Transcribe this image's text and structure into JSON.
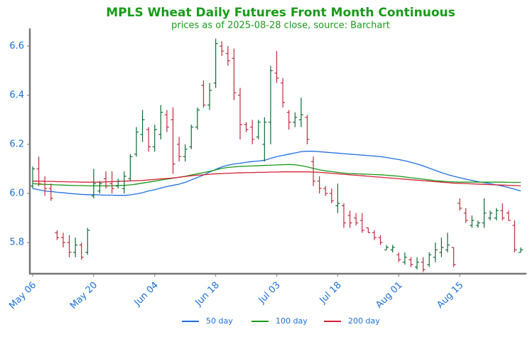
{
  "chart_data": {
    "type": "ohlc",
    "title": "MPLS Wheat Daily Futures Front Month Continuous",
    "subtitle": "prices as of 2025-08-28 close, source: Barchart",
    "title_color": "#1a9a1a",
    "categories": [
      "May 06",
      null,
      null,
      null,
      null,
      null,
      null,
      null,
      null,
      null,
      "May 20",
      null,
      null,
      null,
      null,
      null,
      null,
      null,
      null,
      null,
      "Jun 04",
      null,
      null,
      null,
      null,
      null,
      null,
      null,
      null,
      null,
      "Jun 18",
      null,
      null,
      null,
      null,
      null,
      null,
      null,
      null,
      null,
      "Jul 03",
      null,
      null,
      null,
      null,
      null,
      null,
      null,
      null,
      null,
      "Jul 18",
      null,
      null,
      null,
      null,
      null,
      null,
      null,
      null,
      null,
      "Aug 01",
      null,
      null,
      null,
      null,
      null,
      null,
      null,
      null,
      null,
      "Aug 15",
      null,
      null,
      null,
      null,
      null,
      null,
      null,
      null,
      null,
      null
    ],
    "ohlc": {
      "up_color": "#0b6b35",
      "down_color": "#c4283a",
      "open": [
        6.03,
        6.1,
        6.05,
        6.02,
        5.84,
        5.82,
        5.8,
        5.76,
        5.79,
        5.76,
        5.99,
        6.01,
        6.06,
        6.04,
        6.03,
        6.02,
        6.06,
        6.16,
        6.24,
        6.26,
        6.19,
        6.24,
        6.32,
        6.3,
        6.2,
        6.15,
        6.19,
        6.27,
        6.44,
        6.36,
        6.45,
        6.6,
        6.57,
        6.55,
        6.4,
        6.28,
        6.27,
        6.23,
        6.2,
        6.29,
        6.49,
        6.45,
        6.33,
        6.29,
        6.3,
        6.31,
        6.13,
        6.05,
        6.02,
        6.0,
        5.95,
        5.95,
        5.91,
        5.9,
        5.89,
        5.86,
        5.84,
        5.82,
        5.77,
        5.77,
        5.75,
        5.72,
        5.73,
        5.7,
        5.72,
        5.71,
        5.74,
        5.76,
        5.77,
        5.78,
        5.96,
        5.92,
        5.87,
        5.87,
        5.88,
        5.9,
        5.9,
        5.93,
        5.92,
        5.87,
        5.76
      ],
      "high": [
        6.11,
        6.15,
        6.07,
        6.04,
        5.85,
        5.84,
        5.83,
        5.82,
        5.8,
        5.86,
        6.1,
        6.05,
        6.09,
        6.09,
        6.06,
        6.09,
        6.16,
        6.27,
        6.34,
        6.27,
        6.28,
        6.36,
        6.34,
        6.35,
        6.23,
        6.2,
        6.28,
        6.35,
        6.46,
        6.45,
        6.63,
        6.62,
        6.6,
        6.59,
        6.43,
        6.29,
        6.3,
        6.3,
        6.31,
        6.52,
        6.58,
        6.47,
        6.34,
        6.33,
        6.39,
        6.32,
        6.15,
        6.07,
        6.03,
        6.02,
        6.04,
        5.96,
        5.93,
        5.92,
        5.92,
        5.86,
        5.85,
        5.83,
        5.79,
        5.79,
        5.76,
        5.76,
        5.74,
        5.74,
        5.74,
        5.76,
        5.8,
        5.82,
        5.84,
        5.78,
        5.98,
        5.94,
        5.91,
        5.89,
        5.98,
        5.93,
        5.94,
        5.96,
        5.93,
        5.89,
        5.78
      ],
      "low": [
        6.02,
        6.03,
        5.99,
        5.97,
        5.81,
        5.78,
        5.74,
        5.74,
        5.73,
        5.75,
        5.98,
        6.0,
        6.02,
        6.0,
        6.02,
        6.0,
        6.05,
        6.15,
        6.21,
        6.17,
        6.17,
        6.22,
        6.25,
        6.08,
        6.13,
        6.13,
        6.18,
        6.26,
        6.35,
        6.34,
        6.43,
        6.56,
        6.52,
        6.38,
        6.22,
        6.25,
        6.2,
        6.22,
        6.13,
        6.2,
        6.45,
        6.35,
        6.26,
        6.27,
        6.27,
        6.2,
        6.03,
        6.0,
        5.99,
        5.96,
        5.92,
        5.86,
        5.86,
        5.87,
        5.84,
        5.84,
        5.81,
        5.79,
        5.77,
        5.76,
        5.72,
        5.71,
        5.7,
        5.69,
        5.68,
        5.7,
        5.72,
        5.74,
        5.76,
        5.7,
        5.93,
        5.88,
        5.86,
        5.86,
        5.86,
        5.89,
        5.89,
        5.89,
        5.89,
        5.76,
        5.76
      ],
      "close": [
        6.1,
        6.04,
        6.02,
        5.98,
        5.82,
        5.8,
        5.76,
        5.79,
        5.74,
        5.85,
        6.04,
        6.04,
        6.03,
        6.02,
        6.05,
        6.07,
        6.15,
        6.25,
        6.3,
        6.19,
        6.26,
        6.33,
        6.27,
        6.12,
        6.15,
        6.18,
        6.27,
        6.34,
        6.36,
        6.42,
        6.61,
        6.58,
        6.54,
        6.41,
        6.28,
        6.26,
        6.22,
        6.29,
        6.29,
        6.5,
        6.47,
        6.37,
        6.29,
        6.31,
        6.32,
        6.22,
        6.05,
        6.02,
        6.0,
        5.97,
        5.96,
        5.88,
        5.88,
        5.88,
        5.85,
        5.84,
        5.82,
        5.8,
        5.78,
        5.78,
        5.73,
        5.74,
        5.71,
        5.72,
        5.69,
        5.75,
        5.77,
        5.78,
        5.79,
        5.71,
        5.94,
        5.89,
        5.89,
        5.88,
        5.92,
        5.92,
        5.93,
        5.9,
        5.89,
        5.77,
        5.77
      ]
    },
    "series": [
      {
        "name": "50 day",
        "color": "#1f6fe0",
        "values": [
          6.02,
          6.015,
          6.01,
          6.008,
          6.005,
          6.003,
          6.0,
          5.998,
          5.996,
          5.995,
          5.995,
          5.994,
          5.993,
          5.993,
          5.992,
          5.992,
          5.994,
          5.998,
          6.003,
          6.01,
          6.015,
          6.022,
          6.028,
          6.033,
          6.038,
          6.045,
          6.055,
          6.065,
          6.075,
          6.087,
          6.098,
          6.108,
          6.115,
          6.12,
          6.123,
          6.127,
          6.13,
          6.132,
          6.135,
          6.143,
          6.15,
          6.155,
          6.16,
          6.165,
          6.17,
          6.172,
          6.172,
          6.17,
          6.168,
          6.166,
          6.164,
          6.162,
          6.16,
          6.158,
          6.156,
          6.154,
          6.152,
          6.15,
          6.146,
          6.142,
          6.138,
          6.133,
          6.127,
          6.12,
          6.112,
          6.103,
          6.094,
          6.085,
          6.077,
          6.07,
          6.064,
          6.058,
          6.053,
          6.048,
          6.044,
          6.04,
          6.035,
          6.03,
          6.024,
          6.017,
          6.01
        ]
      },
      {
        "name": "100 day",
        "color": "#1a9a1a",
        "values": [
          6.04,
          6.038,
          6.037,
          6.036,
          6.035,
          6.034,
          6.033,
          6.032,
          6.032,
          6.031,
          6.031,
          6.031,
          6.031,
          6.031,
          6.032,
          6.033,
          6.035,
          6.038,
          6.042,
          6.046,
          6.05,
          6.054,
          6.058,
          6.062,
          6.066,
          6.07,
          6.075,
          6.08,
          6.085,
          6.09,
          6.096,
          6.102,
          6.106,
          6.108,
          6.11,
          6.111,
          6.112,
          6.113,
          6.114,
          6.115,
          6.116,
          6.117,
          6.118,
          6.117,
          6.113,
          6.108,
          6.102,
          6.096,
          6.092,
          6.089,
          6.086,
          6.083,
          6.081,
          6.08,
          6.079,
          6.078,
          6.077,
          6.076,
          6.074,
          6.072,
          6.07,
          6.067,
          6.064,
          6.061,
          6.058,
          6.055,
          6.052,
          6.05,
          6.048,
          6.047,
          6.046,
          6.046,
          6.046,
          6.046,
          6.046,
          6.046,
          6.046,
          6.046,
          6.045,
          6.045,
          6.045
        ]
      },
      {
        "name": "200 day",
        "color": "#d62035",
        "values": [
          6.05,
          6.05,
          6.049,
          6.049,
          6.048,
          6.048,
          6.047,
          6.047,
          6.046,
          6.046,
          6.046,
          6.046,
          6.047,
          6.048,
          6.049,
          6.05,
          6.051,
          6.052,
          6.053,
          6.055,
          6.057,
          6.059,
          6.061,
          6.063,
          6.066,
          6.069,
          6.072,
          6.074,
          6.076,
          6.078,
          6.08,
          6.081,
          6.082,
          6.083,
          6.084,
          6.085,
          6.085,
          6.086,
          6.086,
          6.087,
          6.087,
          6.088,
          6.088,
          6.088,
          6.088,
          6.088,
          6.087,
          6.086,
          6.084,
          6.082,
          6.08,
          6.078,
          6.076,
          6.074,
          6.072,
          6.07,
          6.068,
          6.066,
          6.064,
          6.062,
          6.06,
          6.058,
          6.056,
          6.054,
          6.052,
          6.05,
          6.048,
          6.046,
          6.044,
          6.042,
          6.041,
          6.04,
          6.039,
          6.038,
          6.037,
          6.036,
          6.035,
          6.034,
          6.033,
          6.032,
          6.031
        ]
      }
    ],
    "ylim": [
      5.673,
      6.672
    ],
    "yticks": [
      5.8,
      {
        "value": 6,
        "label": "6.0"
      },
      6.2,
      6.4,
      6.6
    ],
    "grid": false,
    "legend": "bottom"
  }
}
